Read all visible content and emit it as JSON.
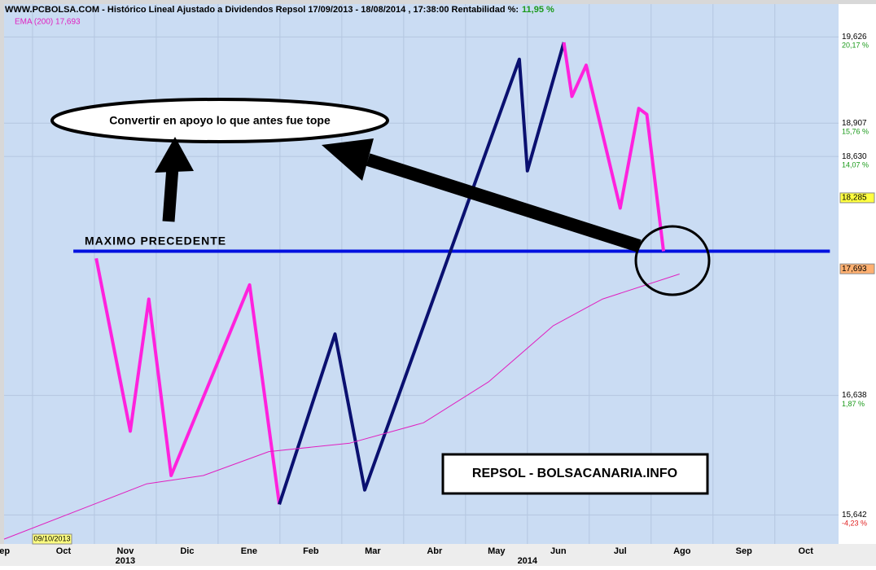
{
  "chart_data": {
    "type": "line",
    "title": "WWW.PCBOLSA.COM - Histórico Lineal  Ajustado a Dividendos Repsol 17/09/2013 - 18/08/2014 , 17:38:00 Rentabilidad %:",
    "return_label": "11,95 %",
    "ema_label": "EMA (200) 17,693",
    "date_box": "09/10/2013",
    "annotations": {
      "support": "Convertir en apoyo lo que antes fue tope",
      "resistance": "MAXIMO PRECEDENTE",
      "brand": "REPSOL - BOLSACANARIA.INFO"
    },
    "years": [
      {
        "value": 2.5,
        "label": "2013"
      },
      {
        "value": 9.0,
        "label": "2014"
      }
    ],
    "xlim": [
      0.54,
      14.03
    ],
    "ylim": [
      15.4,
      19.9
    ],
    "xticks": [
      {
        "value": 0,
        "label": "Sep"
      },
      {
        "value": 1,
        "label": "Oct"
      },
      {
        "value": 2,
        "label": "Nov"
      },
      {
        "value": 3,
        "label": "Dic"
      },
      {
        "value": 4,
        "label": "Ene"
      },
      {
        "value": 5,
        "label": "Feb"
      },
      {
        "value": 6,
        "label": "Mar"
      },
      {
        "value": 7,
        "label": "Abr"
      },
      {
        "value": 8,
        "label": "May"
      },
      {
        "value": 9,
        "label": "Jun"
      },
      {
        "value": 10,
        "label": "Jul"
      },
      {
        "value": 11,
        "label": "Ago"
      },
      {
        "value": 12,
        "label": "Sep"
      },
      {
        "value": 13,
        "label": "Oct"
      }
    ],
    "yticks": [
      {
        "value": 19.626,
        "label": "19,626"
      },
      {
        "value": 18.907,
        "label": "18,907"
      },
      {
        "value": 18.63,
        "label": "18,630"
      },
      {
        "value": 16.638,
        "label": "16,638"
      },
      {
        "value": 15.642,
        "label": "15,642"
      }
    ],
    "ytick_pct_labels": [
      "20,17 %",
      "15,76 %",
      "14,07 %",
      "1,87 %",
      "-4,23 %"
    ],
    "price_marker": {
      "value": 18.285,
      "label": "18,285"
    },
    "ema_marker": {
      "value": 17.693,
      "label": "17,693"
    },
    "grid": true,
    "level": {
      "x": [
        1.66,
        13.89
      ],
      "value": 17.84,
      "color": "#0010e0"
    },
    "series": [
      {
        "color": "#ff22dd",
        "x": [
          2.03,
          2.58,
          2.88,
          3.24,
          4.51,
          4.99
        ],
        "values": [
          17.78,
          16.34,
          17.44,
          15.97,
          17.56,
          15.73
        ]
      },
      {
        "color": "#0a1070",
        "x": [
          4.99,
          5.89,
          6.37,
          8.87,
          9.0,
          9.59
        ],
        "values": [
          15.73,
          17.15,
          15.85,
          19.44,
          18.51,
          19.58
        ]
      },
      {
        "color": "#ff22dd",
        "x": [
          9.59,
          9.72,
          9.95,
          10.5,
          10.8,
          10.93,
          11.2
        ],
        "values": [
          19.58,
          19.13,
          19.39,
          18.2,
          19.03,
          18.98,
          17.84
        ]
      },
      {
        "color": "#e020c0",
        "x": [
          0.54,
          2.84,
          3.76,
          4.82,
          6.13,
          7.32,
          8.37,
          9.42,
          10.21,
          11.46
        ],
        "values": [
          15.44,
          15.9,
          15.97,
          16.17,
          16.24,
          16.41,
          16.75,
          17.22,
          17.44,
          17.65
        ]
      }
    ]
  }
}
